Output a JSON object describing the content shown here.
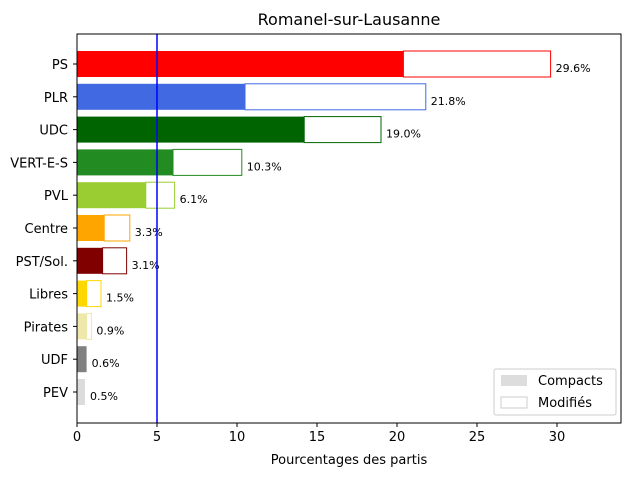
{
  "chart_data": {
    "type": "bar",
    "orientation": "horizontal",
    "title": "Romanel-sur-Lausanne",
    "xlabel": "Pourcentages des partis",
    "ylabel": "",
    "xlim": [
      0,
      34
    ],
    "xticks": [
      0,
      5,
      10,
      15,
      20,
      25,
      30
    ],
    "threshold": 5,
    "threshold_color": "#0000ff",
    "grid": false,
    "legend_position": "lower-right",
    "legend": {
      "compacts_label": "Compacts",
      "modifies_label": "Modifiés",
      "compacts_color": "#dddddd"
    },
    "categories": [
      "PS",
      "PLR",
      "UDC",
      "VERT-E-S",
      "PVL",
      "Centre",
      "PST/Sol.",
      "Libres",
      "Pirates",
      "UDF",
      "PEV"
    ],
    "colors": [
      "#ff0000",
      "#4169e1",
      "#006400",
      "#228b22",
      "#9acd32",
      "#ffa500",
      "#800000",
      "#ffd700",
      "#eee8aa",
      "#808080",
      "#dcdcdc"
    ],
    "series": [
      {
        "name": "Compacts",
        "values": [
          20.4,
          10.5,
          14.2,
          6.0,
          4.3,
          1.7,
          1.6,
          0.6,
          0.6,
          0.6,
          0.5
        ]
      },
      {
        "name": "Modifiés",
        "values": [
          9.2,
          11.3,
          4.8,
          4.3,
          1.8,
          1.6,
          1.5,
          0.9,
          0.3,
          0.0,
          0.0
        ]
      }
    ],
    "totals": [
      29.6,
      21.8,
      19.0,
      10.3,
      6.1,
      3.3,
      3.1,
      1.5,
      0.9,
      0.6,
      0.5
    ],
    "value_labels": [
      "29.6%",
      "21.8%",
      "19.0%",
      "10.3%",
      "6.1%",
      "3.3%",
      "3.1%",
      "1.5%",
      "0.9%",
      "0.6%",
      "0.5%"
    ]
  }
}
